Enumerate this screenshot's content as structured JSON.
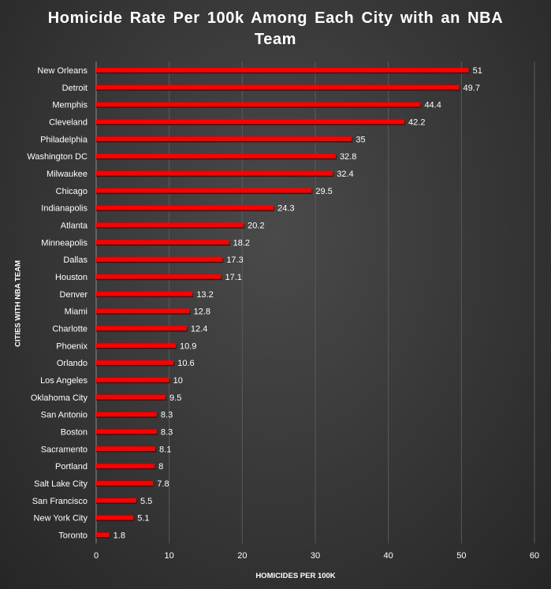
{
  "title_lines": [
    "Homicide  Rate Per 100k Among Each City with an NBA",
    "Team"
  ],
  "colors": {
    "bar": "#ff0000",
    "bar_shadow": "#6b0000",
    "grid": "#5a5a5a",
    "axis": "#8a8a8a",
    "text": "#ffffff"
  },
  "chart_data": {
    "type": "bar",
    "orientation": "horizontal",
    "title": "Homicide  Rate Per 100k Among Each City with an NBA Team",
    "xlabel": "HOMICIDES PER 100K",
    "ylabel": "CITIES WITH NBA TEAM",
    "xlim": [
      0,
      60
    ],
    "xticks": [
      0,
      10,
      20,
      30,
      40,
      50,
      60
    ],
    "grid": true,
    "legend": "none",
    "categories": [
      "New Orleans",
      "Detroit",
      "Memphis",
      "Cleveland",
      "Philadelphia",
      "Washington DC",
      "Milwaukee",
      "Chicago",
      "Indianapolis",
      "Atlanta",
      "Minneapolis",
      "Dallas",
      "Houston",
      "Denver",
      "Miami",
      "Charlotte",
      "Phoenix",
      "Orlando",
      "Los Angeles",
      "Oklahoma City",
      "San Antonio",
      "Boston",
      "Sacramento",
      "Portland",
      "Salt Lake City",
      "San Francisco",
      "New York City",
      "Toronto"
    ],
    "values": [
      51,
      49.7,
      44.4,
      42.2,
      35,
      32.8,
      32.4,
      29.5,
      24.3,
      20.2,
      18.2,
      17.3,
      17.1,
      13.2,
      12.8,
      12.4,
      10.9,
      10.6,
      10,
      9.5,
      8.3,
      8.3,
      8.1,
      8,
      7.8,
      5.5,
      5.1,
      1.8
    ]
  }
}
